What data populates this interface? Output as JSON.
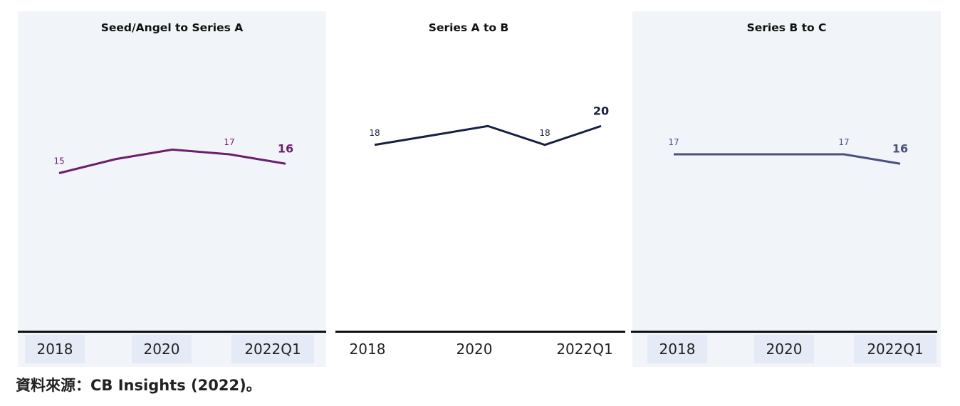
{
  "chart_data": [
    {
      "type": "line",
      "title": "Seed/Angel to Series A",
      "x": [
        "2018",
        "2019",
        "2020",
        "2021",
        "2022Q1"
      ],
      "series": [
        {
          "values": [
            15,
            16.5,
            17.5,
            17,
            16
          ],
          "color": "#6b1f6e"
        }
      ],
      "data_labels": [
        {
          "index": 0,
          "text": "15",
          "bold": false
        },
        {
          "index": 3,
          "text": "17",
          "bold": false
        },
        {
          "index": 4,
          "text": "16",
          "bold": true
        }
      ],
      "xticks": [
        "2018",
        "2020",
        "2022Q1"
      ],
      "ylim": [
        5,
        25
      ],
      "grid": false,
      "background": "#f1f4f8"
    },
    {
      "type": "line",
      "title": "Series A to B",
      "x": [
        "2018",
        "2019",
        "2020",
        "2021",
        "2022Q1"
      ],
      "series": [
        {
          "values": [
            18,
            19,
            20,
            18,
            20
          ],
          "color": "#152042"
        }
      ],
      "data_labels": [
        {
          "index": 0,
          "text": "18",
          "bold": false
        },
        {
          "index": 3,
          "text": "18",
          "bold": false
        },
        {
          "index": 4,
          "text": "20",
          "bold": true
        }
      ],
      "xticks": [
        "2018",
        "2020",
        "2022Q1"
      ],
      "ylim": [
        5,
        25
      ],
      "grid": false,
      "background": "#ffffff"
    },
    {
      "type": "line",
      "title": "Series B to C",
      "x": [
        "2018",
        "2019",
        "2020",
        "2021",
        "2022Q1"
      ],
      "series": [
        {
          "values": [
            17,
            17,
            17,
            17,
            16
          ],
          "color": "#4b5080"
        }
      ],
      "data_labels": [
        {
          "index": 0,
          "text": "17",
          "bold": false
        },
        {
          "index": 3,
          "text": "17",
          "bold": false
        },
        {
          "index": 4,
          "text": "16",
          "bold": true
        }
      ],
      "xticks": [
        "2018",
        "2020",
        "2022Q1"
      ],
      "ylim": [
        5,
        25
      ],
      "grid": false,
      "background": "#f1f4f8"
    }
  ],
  "source_text": "資料來源：CB Insights (2022)。"
}
